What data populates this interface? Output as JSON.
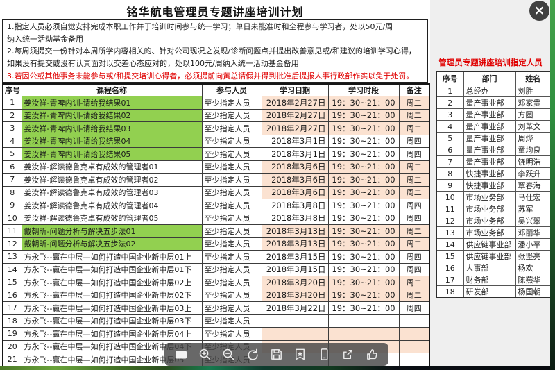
{
  "page": {
    "title": "铭华航电管理员专题讲座培训计划",
    "close_glyph": "×"
  },
  "notes": {
    "lines": [
      {
        "text": "1.指定人员必须自觉安排完成本职工作并于培训时间参与统一学习；单日未能准时和全程参与学习者，处以50元/周",
        "red": false
      },
      {
        "text": "纳入统一活动基金备用",
        "red": false
      },
      {
        "text": "2.每周须提交一份针对本周所学内容相关的、针对公司现况之发现/诊断问题点并提出改善意见或/和建议的培训学习心得，",
        "red": false
      },
      {
        "text": "如果没有提交或没有认真面对以交差心态应对的，处以100元/周纳入统一活动基金备用",
        "red": false
      },
      {
        "text": "3.若因公或其他事务未能参与或/和提交培训心得者，必须提前向黄总请假并得到批准后提报人事行政部作实以免于处罚。",
        "red": true
      }
    ]
  },
  "schedule_table": {
    "headers": [
      "序号",
      "课程名称",
      "参与人员",
      "学习日期",
      "学习时段",
      "备注"
    ],
    "rows": [
      {
        "num": "1",
        "course": "姜汝祥-青啤内训-请给我结果01",
        "green": true,
        "who": "至少指定人员",
        "date": "2018年2月27日",
        "time": "19：30~21：00",
        "note": "周二",
        "hl": true
      },
      {
        "num": "2",
        "course": "姜汝祥-青啤内训-请给我结果02",
        "green": true,
        "who": "至少指定人员",
        "date": "2018年2月27日",
        "time": "19：30~21：00",
        "note": "周二",
        "hl": true
      },
      {
        "num": "3",
        "course": "姜汝祥-青啤内训-请给我结果03",
        "green": true,
        "who": "至少指定人员",
        "date": "2018年2月27日",
        "time": "19：30~21：00",
        "note": "周二",
        "hl": true
      },
      {
        "num": "4",
        "course": "姜汝祥-青啤内训-请给我结果04",
        "green": true,
        "who": "至少指定人员",
        "date": "2018年3月1日",
        "time": "19：30~21：00",
        "note": "周四",
        "hl": false
      },
      {
        "num": "5",
        "course": "姜汝祥-青啤内训-请给我结果05",
        "green": true,
        "who": "至少指定人员",
        "date": "2018年3月1日",
        "time": "19：30~21：00",
        "note": "周四",
        "hl": false
      },
      {
        "num": "6",
        "course": "姜汝祥-解读德鲁克卓有成效的管理者01",
        "green": false,
        "who": "至少指定人员",
        "date": "2018年3月6日",
        "time": "19：30~21：00",
        "note": "周二",
        "hl": true
      },
      {
        "num": "7",
        "course": "姜汝祥-解读德鲁克卓有成效的管理者02",
        "green": false,
        "who": "至少指定人员",
        "date": "2018年3月6日",
        "time": "19：30~21：00",
        "note": "周二",
        "hl": true
      },
      {
        "num": "8",
        "course": "姜汝祥-解读德鲁克卓有成效的管理者03",
        "green": false,
        "who": "至少指定人员",
        "date": "2018年3月6日",
        "time": "19：30~21：00",
        "note": "周二",
        "hl": true
      },
      {
        "num": "9",
        "course": "姜汝祥-解读德鲁克卓有成效的管理者04",
        "green": false,
        "who": "至少指定人员",
        "date": "2018年3月8日",
        "time": "19：30~21：00",
        "note": "周四",
        "hl": false
      },
      {
        "num": "10",
        "course": "姜汝祥-解读德鲁克卓有成效的管理者05",
        "green": false,
        "who": "至少指定人员",
        "date": "2018年3月8日",
        "time": "19：30~21：00",
        "note": "周四",
        "hl": false
      },
      {
        "num": "11",
        "course": "戴朝昕-问题分析与解决五步法01",
        "green": true,
        "who": "至少指定人员",
        "date": "2018年3月13日",
        "time": "19：30~21：00",
        "note": "周二",
        "hl": true
      },
      {
        "num": "12",
        "course": "戴朝昕-问题分析与解决五步法02",
        "green": true,
        "who": "至少指定人员",
        "date": "2018年3月13日",
        "time": "19：30~21：00",
        "note": "周二",
        "hl": true
      },
      {
        "num": "13",
        "course": "方永飞--赢在中层—如何打造中国企业新中层01上",
        "green": false,
        "who": "至少指定人员",
        "date": "2018年3月15日",
        "time": "19：30~21：00",
        "note": "周四",
        "hl": false
      },
      {
        "num": "14",
        "course": "方永飞--赢在中层—如何打造中国企业新中层01下",
        "green": false,
        "who": "至少指定人员",
        "date": "2018年3月15日",
        "time": "19：30~21：00",
        "note": "周四",
        "hl": false
      },
      {
        "num": "15",
        "course": "方永飞--赢在中层—如何打造中国企业新中层02上",
        "green": false,
        "who": "至少指定人员",
        "date": "2018年3月20日",
        "time": "19：30~21：00",
        "note": "周二",
        "hl": true
      },
      {
        "num": "16",
        "course": "方永飞--赢在中层—如何打造中国企业新中层02下",
        "green": false,
        "who": "至少指定人员",
        "date": "2018年3月20日",
        "time": "19：30~21：00",
        "note": "周二",
        "hl": true
      },
      {
        "num": "17",
        "course": "方永飞--赢在中层—如何打造中国企业新中层03上",
        "green": false,
        "who": "至少指定人员",
        "date": "2018年3月22日",
        "time": "19：30~21：00",
        "note": "周四",
        "hl": false
      },
      {
        "num": "18",
        "course": "方永飞--赢在中层—如何打造中国企业新中层03下",
        "green": false,
        "who": "至少指定人员",
        "date": "",
        "time": "",
        "note": "",
        "hl": false
      },
      {
        "num": "19",
        "course": "方永飞--赢在中层—如何打造中国企业新中层04上",
        "green": false,
        "who": "至少指定人员",
        "date": "",
        "time": "",
        "note": "",
        "hl": true
      },
      {
        "num": "20",
        "course": "方永飞--赢在中层—如何打造中国企业新中层04下",
        "green": false,
        "who": "至少指定人员",
        "date": "",
        "time": "",
        "note": "",
        "hl": true
      },
      {
        "num": "21",
        "course": "方永飞--赢在中层—如何打造中国企业新中层05",
        "green": false,
        "who": "至少指定人员",
        "date": "",
        "time": "",
        "note": "",
        "hl": false
      }
    ]
  },
  "people_panel": {
    "title": "管理员专题讲座培训指定人员",
    "headers": [
      "序号",
      "部门",
      "姓名"
    ],
    "rows": [
      {
        "num": "1",
        "dept": "总经办",
        "name": "刘胜"
      },
      {
        "num": "2",
        "dept": "量产事业部",
        "name": "邓家贵"
      },
      {
        "num": "3",
        "dept": "量产事业部",
        "name": "方圆"
      },
      {
        "num": "4",
        "dept": "量产事业部",
        "name": "刘革文"
      },
      {
        "num": "5",
        "dept": "量产事业部",
        "name": "周烨"
      },
      {
        "num": "6",
        "dept": "量产事业部",
        "name": "童均良"
      },
      {
        "num": "7",
        "dept": "量产事业部",
        "name": "饶明浩"
      },
      {
        "num": "8",
        "dept": "快捷事业部",
        "name": "李跃升"
      },
      {
        "num": "9",
        "dept": "快捷事业部",
        "name": "覃春海"
      },
      {
        "num": "10",
        "dept": "市场业务部",
        "name": "马仕宏"
      },
      {
        "num": "11",
        "dept": "市场业务部",
        "name": "苏军"
      },
      {
        "num": "12",
        "dept": "市场业务部",
        "name": "吴兴翠"
      },
      {
        "num": "13",
        "dept": "市场业务部",
        "name": "邓丽华"
      },
      {
        "num": "14",
        "dept": "供应链事业部",
        "name": "潘小平"
      },
      {
        "num": "15",
        "dept": "供应链事业部",
        "name": "张坚亮"
      },
      {
        "num": "16",
        "dept": "人事部",
        "name": "杨欢"
      },
      {
        "num": "17",
        "dept": "财务部",
        "name": "陈燕华"
      },
      {
        "num": "18",
        "dept": "研发部",
        "name": "杨国朝"
      }
    ]
  },
  "toolbar": {
    "icons": [
      "fit-screen",
      "zoom-in",
      "zoom-out",
      "rotate",
      "save",
      "bookmark",
      "phone",
      "share",
      "thumbs-up"
    ]
  },
  "colors": {
    "course_green": "#92D050",
    "tuesday_orange": "#FBE2D1",
    "warning_red": "#E00000",
    "toolbar_gray": "rgba(66,66,66,0.80)",
    "close_circle": "#404040"
  }
}
